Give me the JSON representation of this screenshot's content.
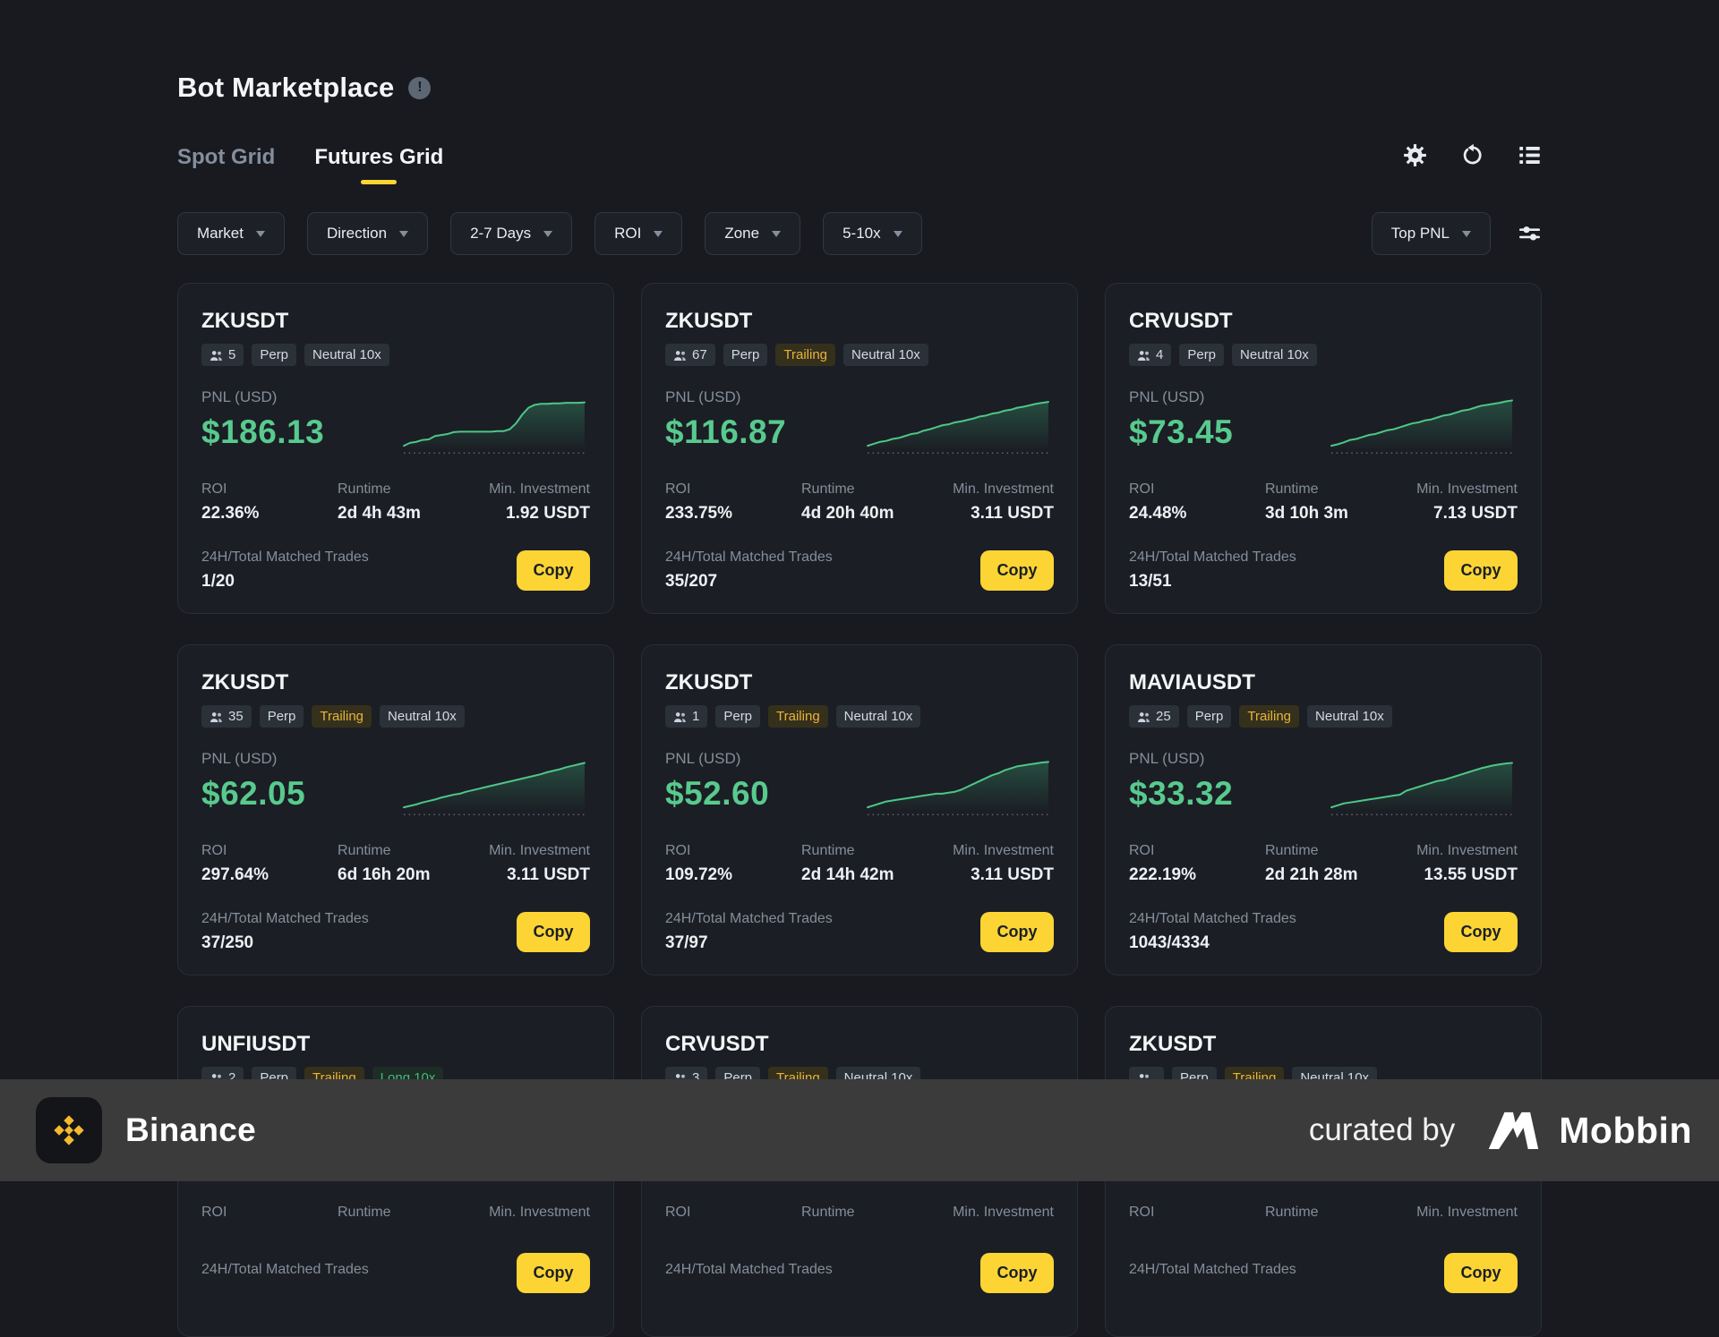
{
  "header": {
    "title": "Bot Marketplace"
  },
  "tabs": [
    {
      "label": "Spot Grid",
      "active": false
    },
    {
      "label": "Futures Grid",
      "active": true
    }
  ],
  "toolbar_icons": [
    "settings-gear",
    "refresh",
    "list-view"
  ],
  "filters": [
    {
      "label": "Market"
    },
    {
      "label": "Direction"
    },
    {
      "label": "2-7 Days"
    },
    {
      "label": "ROI"
    },
    {
      "label": "Zone"
    },
    {
      "label": "5-10x"
    }
  ],
  "sort": {
    "label": "Top PNL"
  },
  "card_labels": {
    "pnl": "PNL (USD)",
    "roi": "ROI",
    "runtime": "Runtime",
    "min_investment": "Min. Investment",
    "trades": "24H/Total Matched Trades",
    "copy": "Copy"
  },
  "cards": [
    {
      "symbol": "ZKUSDT",
      "tags": [
        {
          "text": "5",
          "icon": "users"
        },
        {
          "text": "Perp"
        },
        {
          "text": "Neutral 10x"
        }
      ],
      "pnl": "$186.13",
      "roi": "22.36%",
      "runtime": "2d 4h 43m",
      "min_investment": "1.92 USDT",
      "trades": "1/20"
    },
    {
      "symbol": "ZKUSDT",
      "tags": [
        {
          "text": "67",
          "icon": "users"
        },
        {
          "text": "Perp"
        },
        {
          "text": "Trailing",
          "style": "trailing"
        },
        {
          "text": "Neutral 10x"
        }
      ],
      "pnl": "$116.87",
      "roi": "233.75%",
      "runtime": "4d 20h 40m",
      "min_investment": "3.11 USDT",
      "trades": "35/207"
    },
    {
      "symbol": "CRVUSDT",
      "tags": [
        {
          "text": "4",
          "icon": "users"
        },
        {
          "text": "Perp"
        },
        {
          "text": "Neutral 10x"
        }
      ],
      "pnl": "$73.45",
      "roi": "24.48%",
      "runtime": "3d 10h 3m",
      "min_investment": "7.13 USDT",
      "trades": "13/51"
    },
    {
      "symbol": "ZKUSDT",
      "tags": [
        {
          "text": "35",
          "icon": "users"
        },
        {
          "text": "Perp"
        },
        {
          "text": "Trailing",
          "style": "trailing"
        },
        {
          "text": "Neutral 10x"
        }
      ],
      "pnl": "$62.05",
      "roi": "297.64%",
      "runtime": "6d 16h 20m",
      "min_investment": "3.11 USDT",
      "trades": "37/250"
    },
    {
      "symbol": "ZKUSDT",
      "tags": [
        {
          "text": "1",
          "icon": "users"
        },
        {
          "text": "Perp"
        },
        {
          "text": "Trailing",
          "style": "trailing"
        },
        {
          "text": "Neutral 10x"
        }
      ],
      "pnl": "$52.60",
      "roi": "109.72%",
      "runtime": "2d 14h 42m",
      "min_investment": "3.11 USDT",
      "trades": "37/97"
    },
    {
      "symbol": "MAVIAUSDT",
      "tags": [
        {
          "text": "25",
          "icon": "users"
        },
        {
          "text": "Perp"
        },
        {
          "text": "Trailing",
          "style": "trailing"
        },
        {
          "text": "Neutral 10x"
        }
      ],
      "pnl": "$33.32",
      "roi": "222.19%",
      "runtime": "2d 21h 28m",
      "min_investment": "13.55 USDT",
      "trades": "1043/4334"
    },
    {
      "symbol": "UNFIUSDT",
      "partial": true,
      "tags": [
        {
          "text": "2",
          "icon": "users"
        },
        {
          "text": "Perp"
        },
        {
          "text": "Trailing",
          "style": "trailing"
        },
        {
          "text": "Long 10x",
          "style": "long"
        }
      ]
    },
    {
      "symbol": "CRVUSDT",
      "partial": true,
      "tags": [
        {
          "text": "3",
          "icon": "users"
        },
        {
          "text": "Perp"
        },
        {
          "text": "Trailing",
          "style": "trailing"
        },
        {
          "text": "Neutral 10x"
        }
      ]
    },
    {
      "symbol": "ZKUSDT",
      "partial": true,
      "tags": [
        {
          "text": "",
          "icon": "users"
        },
        {
          "text": "Perp"
        },
        {
          "text": "Trailing",
          "style": "trailing"
        },
        {
          "text": "Neutral 10x"
        }
      ]
    }
  ],
  "chart_data": {
    "type": "line",
    "description": "PNL sparkline per visible bot card; unlabeled axes, dotted baseline under curve, green area fill",
    "ylim": [
      0,
      100
    ],
    "series": [
      {
        "card": 0,
        "symbol": "ZKUSDT",
        "values": [
          2,
          8,
          10,
          14,
          15,
          22,
          24,
          26,
          30,
          31,
          31,
          31,
          31,
          31,
          31,
          32,
          32,
          36,
          48,
          66,
          80,
          86,
          88,
          88,
          89,
          89,
          90,
          90,
          90,
          91
        ]
      },
      {
        "card": 1,
        "symbol": "ZKUSDT",
        "values": [
          2,
          6,
          10,
          12,
          16,
          18,
          22,
          26,
          28,
          33,
          36,
          40,
          44,
          46,
          50,
          52,
          55,
          58,
          62,
          64,
          68,
          70,
          74,
          76,
          80,
          82,
          85,
          88,
          90,
          92
        ]
      },
      {
        "card": 2,
        "symbol": "CRVUSDT",
        "values": [
          2,
          5,
          9,
          14,
          16,
          20,
          24,
          26,
          30,
          34,
          36,
          40,
          44,
          48,
          50,
          54,
          56,
          60,
          64,
          66,
          70,
          74,
          76,
          80,
          84,
          86,
          88,
          90,
          93,
          95
        ]
      },
      {
        "card": 3,
        "symbol": "ZKUSDT",
        "values": [
          2,
          5,
          8,
          12,
          15,
          18,
          22,
          25,
          28,
          30,
          34,
          37,
          40,
          43,
          46,
          49,
          52,
          55,
          58,
          61,
          64,
          67,
          70,
          74,
          77,
          80,
          84,
          87,
          90,
          93
        ]
      },
      {
        "card": 4,
        "symbol": "ZKUSDT",
        "values": [
          2,
          6,
          10,
          14,
          16,
          18,
          20,
          22,
          24,
          26,
          28,
          30,
          30,
          32,
          34,
          38,
          44,
          50,
          56,
          62,
          68,
          72,
          78,
          82,
          86,
          88,
          90,
          92,
          94,
          95
        ]
      },
      {
        "card": 5,
        "symbol": "MAVIAUSDT",
        "values": [
          2,
          6,
          10,
          12,
          14,
          16,
          18,
          20,
          22,
          24,
          26,
          28,
          36,
          40,
          44,
          48,
          52,
          56,
          58,
          62,
          66,
          70,
          74,
          78,
          82,
          85,
          88,
          90,
          92,
          93
        ]
      }
    ]
  },
  "footer": {
    "brand": "Binance",
    "curated_by": "curated by",
    "curator": "Mobbin"
  },
  "colors": {
    "background": "#181a20",
    "card": "#1b1e24",
    "accent_yellow": "#fcd535",
    "pnl_green": "#58ca8e",
    "trailing_yellow": "#e8b43a",
    "long_green": "#3fbe7b",
    "muted_text": "#848e9c",
    "footer_bar": "#3b3b3b",
    "binance_gold": "#f3ba2f"
  }
}
